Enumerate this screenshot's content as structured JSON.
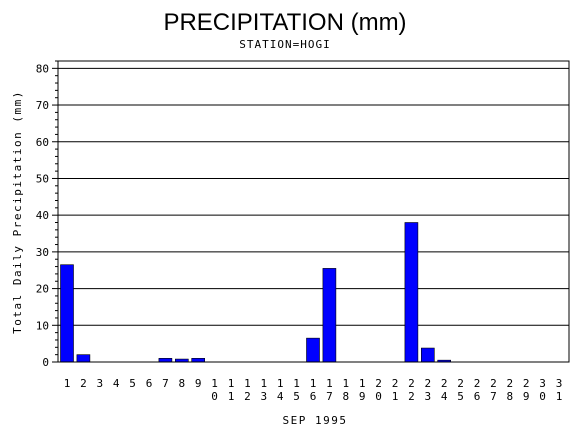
{
  "chart_data": {
    "type": "bar",
    "title": "PRECIPITATION (mm)",
    "subtitle": "STATION=HOGI",
    "xlabel": "SEP 1995",
    "ylabel": "Total Daily Precipitation (mm)",
    "ylim": [
      0,
      82
    ],
    "yticks": [
      0,
      10,
      20,
      30,
      40,
      50,
      60,
      70,
      80
    ],
    "grid": true,
    "bar_color": "#0000ff",
    "categories": [
      "1",
      "2",
      "3",
      "4",
      "5",
      "6",
      "7",
      "8",
      "9",
      "10",
      "11",
      "12",
      "13",
      "14",
      "15",
      "16",
      "17",
      "18",
      "19",
      "20",
      "21",
      "22",
      "23",
      "24",
      "25",
      "26",
      "27",
      "28",
      "29",
      "30",
      "31"
    ],
    "values": [
      26.5,
      2.0,
      0,
      0,
      0,
      0,
      1.0,
      0.8,
      1.0,
      0,
      0,
      0,
      0,
      0,
      0,
      6.5,
      25.5,
      0,
      0,
      0,
      0,
      38.0,
      3.8,
      0.5,
      0,
      0,
      0,
      0,
      0,
      0,
      0
    ]
  }
}
